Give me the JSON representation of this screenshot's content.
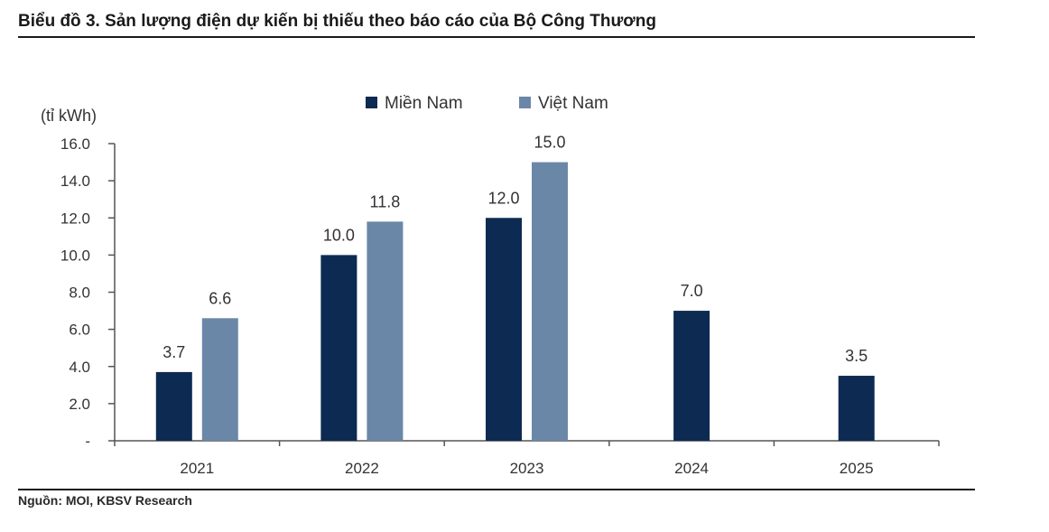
{
  "header": {
    "title": "Biểu đồ 3. Sản lượng điện dự kiến bị thiếu theo báo cáo của Bộ Công Thương"
  },
  "footer": {
    "source": "Nguồn: MOI, KBSV Research"
  },
  "chart_data": {
    "type": "bar",
    "title": "Biểu đồ 3. Sản lượng điện dự kiến bị thiếu theo báo cáo của Bộ Công Thương",
    "ylabel": "(tỉ kWh)",
    "xlabel": "",
    "categories": [
      "2021",
      "2022",
      "2023",
      "2024",
      "2025"
    ],
    "series": [
      {
        "name": "Miền Nam",
        "color": "#0d2a52",
        "values": [
          3.7,
          10.0,
          12.0,
          7.0,
          3.5
        ],
        "labels": [
          "3.7",
          "10.0",
          "12.0",
          "7.0",
          "3.5"
        ]
      },
      {
        "name": "Việt Nam",
        "color": "#6b87a8",
        "values": [
          6.6,
          11.8,
          15.0,
          null,
          null
        ],
        "labels": [
          "6.6",
          "11.8",
          "15.0",
          null,
          null
        ]
      }
    ],
    "ylim": [
      0,
      16
    ],
    "yticks": [
      0,
      2,
      4,
      6,
      8,
      10,
      12,
      14,
      16
    ],
    "ytick_labels": [
      "-",
      "2.0",
      "4.0",
      "6.0",
      "8.0",
      "10.0",
      "12.0",
      "14.0",
      "16.0"
    ],
    "legend_position": "top-center",
    "grid": false
  }
}
